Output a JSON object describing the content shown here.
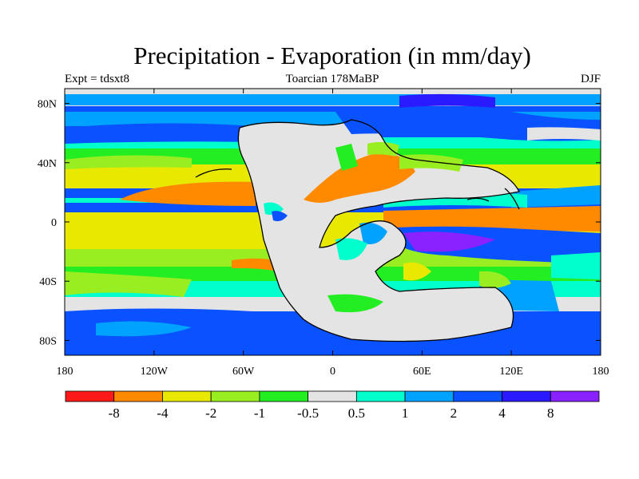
{
  "header": {
    "title": "Precipitation - Evaporation (in mm/day)",
    "left": "Expt = tdsxt8",
    "center": "Toarcian 178MaBP",
    "right": "DJF"
  },
  "colors": {
    "strong_deficit": "#ff1a1a",
    "deficit_orange": "#ff8a00",
    "deficit_yellow": "#e8e800",
    "deficit_lime": "#99ee22",
    "deficit_green": "#22ee22",
    "neutral": "#e4e4e4",
    "surplus_cyan": "#00ffcc",
    "surplus_sky": "#00a2ff",
    "surplus_blue": "#0a52ff",
    "surplus_deep": "#2a1aff",
    "surplus_violet": "#8a22ff",
    "coast": "#000000"
  },
  "map": {
    "projection": "cylindrical equidistant",
    "lon_range": [
      -180,
      180
    ],
    "lat_range": [
      -90,
      90
    ],
    "x_ticks": [
      {
        "value": -180,
        "label": "180"
      },
      {
        "value": -120,
        "label": "120W"
      },
      {
        "value": -60,
        "label": "60W"
      },
      {
        "value": 0,
        "label": "0"
      },
      {
        "value": 60,
        "label": "60E"
      },
      {
        "value": 120,
        "label": "120E"
      },
      {
        "value": 180,
        "label": "180"
      }
    ],
    "y_ticks": [
      {
        "value": 80,
        "label": "80N"
      },
      {
        "value": 40,
        "label": "40N"
      },
      {
        "value": 0,
        "label": "0"
      },
      {
        "value": -40,
        "label": "40S"
      },
      {
        "value": -80,
        "label": "80S"
      }
    ]
  },
  "colorbar": {
    "colors": [
      "#ff1a1a",
      "#ff8a00",
      "#e8e800",
      "#99ee22",
      "#22ee22",
      "#e4e4e4",
      "#00ffcc",
      "#00a2ff",
      "#0a52ff",
      "#2a1aff",
      "#8a22ff"
    ],
    "labels": [
      "-8",
      "-4",
      "-2",
      "-1",
      "-0.5",
      "0.5",
      "1",
      "2",
      "4",
      "8"
    ]
  }
}
